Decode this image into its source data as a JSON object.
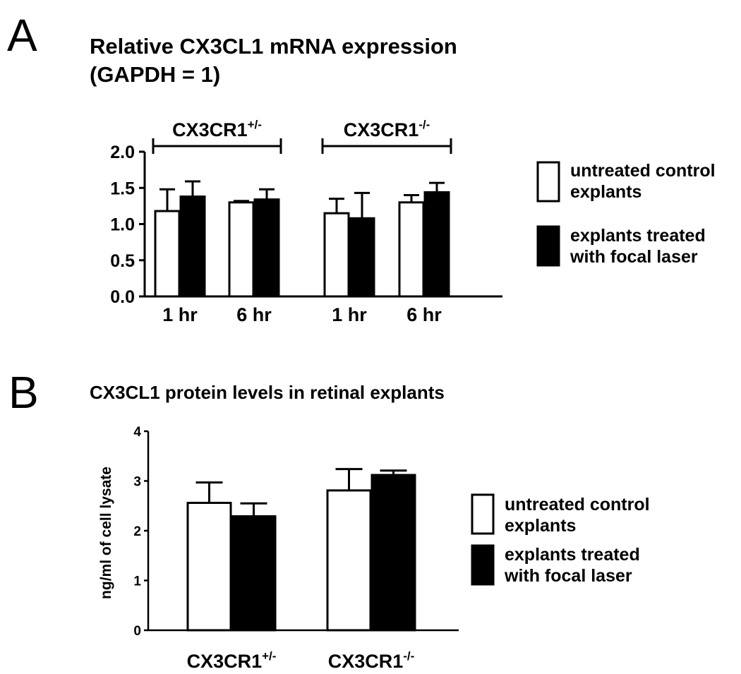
{
  "panels": {
    "a": {
      "letter": "A"
    },
    "b": {
      "letter": "B"
    }
  },
  "chart_data": [
    {
      "type": "bar",
      "title": "Relative CX3CL1 mRNA expression",
      "subtitle": "(GAPDH = 1)",
      "xlabel": "",
      "ylabel": "",
      "ylim": [
        0,
        2.0
      ],
      "yticks": [
        "0.0",
        "0.5",
        "1.0",
        "1.5",
        "2.0"
      ],
      "categories": [
        "1 hr",
        "6 hr",
        "1 hr",
        "6 hr"
      ],
      "groups": [
        {
          "base": "CX3CR1",
          "sup": "+/-",
          "categories": [
            0,
            1
          ]
        },
        {
          "base": "CX3CR1",
          "sup": "-/-",
          "categories": [
            2,
            3
          ]
        }
      ],
      "series": [
        {
          "name": "untreated control explants",
          "legend_lines": [
            "untreated control",
            "explants"
          ],
          "fill": "#ffffff",
          "values": [
            1.18,
            1.3,
            1.15,
            1.3
          ],
          "errors": [
            0.3,
            0.02,
            0.2,
            0.1
          ]
        },
        {
          "name": "explants treated with focal laser",
          "legend_lines": [
            "explants treated",
            "with focal laser"
          ],
          "fill": "#000000",
          "values": [
            1.38,
            1.34,
            1.08,
            1.44
          ],
          "errors": [
            0.21,
            0.14,
            0.35,
            0.13
          ]
        }
      ],
      "grid": false,
      "legend_position": "right"
    },
    {
      "type": "bar",
      "title": "CX3CL1 protein levels in retinal explants",
      "xlabel": "",
      "ylabel": "ng/ml of cell lysate",
      "ylim": [
        0,
        4
      ],
      "yticks": [
        "0",
        "1",
        "2",
        "3",
        "4"
      ],
      "categories": [
        {
          "base": "CX3CR1",
          "sup": "+/-"
        },
        {
          "base": "CX3CR1",
          "sup": "-/-"
        }
      ],
      "series": [
        {
          "name": "untreated control explants",
          "legend_lines": [
            "untreated control",
            "explants"
          ],
          "fill": "#ffffff",
          "values": [
            2.56,
            2.81
          ],
          "errors": [
            0.41,
            0.43
          ]
        },
        {
          "name": "explants treated with focal laser",
          "legend_lines": [
            "explants treated",
            "with focal laser"
          ],
          "fill": "#000000",
          "values": [
            2.29,
            3.12
          ],
          "errors": [
            0.26,
            0.09
          ]
        }
      ],
      "grid": false,
      "legend_position": "right"
    }
  ]
}
